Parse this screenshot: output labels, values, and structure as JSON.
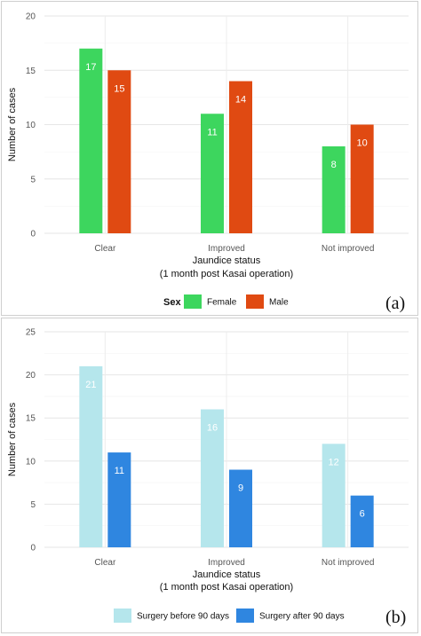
{
  "chart_data": [
    {
      "type": "bar",
      "panel_label": "(a)",
      "categories": [
        "Clear",
        "Improved",
        "Not improved"
      ],
      "series": [
        {
          "name": "Female",
          "values": [
            17,
            11,
            8
          ],
          "color": "#3dd65e"
        },
        {
          "name": "Male",
          "values": [
            15,
            14,
            10
          ],
          "color": "#e04a12"
        }
      ],
      "xlabel_line1": "Jaundice status",
      "xlabel_line2": "(1 month post Kasai operation)",
      "ylabel": "Number of cases",
      "ylim": [
        0,
        20
      ],
      "yticks": [
        "0",
        "5",
        "10",
        "15",
        "20"
      ],
      "legend_title": "Sex",
      "legend_position": "bottom",
      "grid": true
    },
    {
      "type": "bar",
      "panel_label": "(b)",
      "categories": [
        "Clear",
        "Improved",
        "Not improved"
      ],
      "series": [
        {
          "name": "Surgery before 90 days",
          "values": [
            21,
            16,
            12
          ],
          "color": "#b5e6ec"
        },
        {
          "name": "Surgery after 90 days",
          "values": [
            11,
            9,
            6
          ],
          "color": "#2f86e0"
        }
      ],
      "xlabel_line1": "Jaundice status",
      "xlabel_line2": "(1 month post Kasai operation)",
      "ylabel": "Number of cases",
      "ylim": [
        0,
        25
      ],
      "yticks": [
        "0",
        "5",
        "10",
        "15",
        "20",
        "25"
      ],
      "legend_title": "",
      "legend_position": "bottom",
      "grid": true
    }
  ]
}
